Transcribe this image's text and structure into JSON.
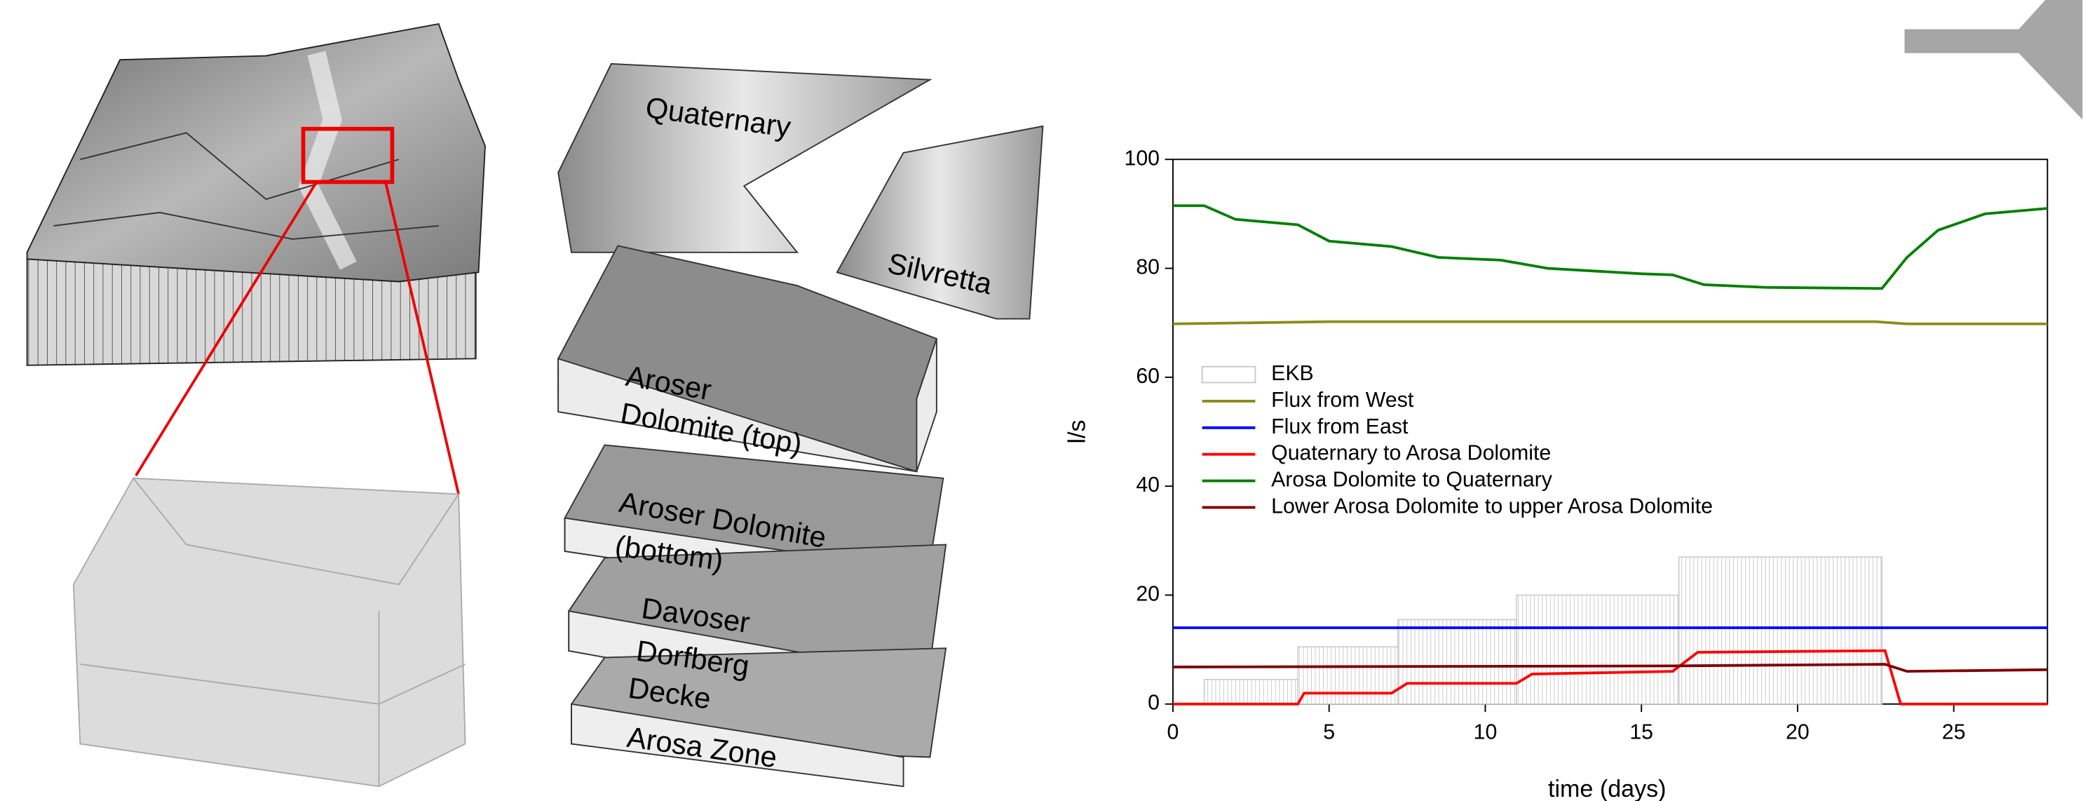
{
  "model_labels": [
    "Quaternary",
    "Silvretta",
    "Aroser",
    "Dolomite (top)",
    "Aroser Dolomite",
    "(bottom)",
    "Davoser",
    "Dorfberg",
    "Decke",
    "Arosa Zone"
  ],
  "chart_data": {
    "type": "line",
    "xlabel": "time (days)",
    "ylabel": "l/s",
    "xlim": [
      0,
      28
    ],
    "xticks": [
      0,
      5,
      10,
      15,
      20,
      25
    ],
    "ylim": [
      0,
      100
    ],
    "yticks": [
      0,
      20,
      40,
      60,
      80,
      100
    ],
    "bar_series": {
      "name": "EKB",
      "color": "#c8c8c8",
      "bins": [
        1,
        4,
        7.2,
        11,
        16.2,
        22.7
      ],
      "values": [
        4.5,
        10.5,
        15.5,
        20,
        27
      ]
    },
    "series": [
      {
        "name": "Flux from West",
        "color": "#8b8b1a",
        "x": [
          0,
          5,
          22.5,
          23.5,
          28
        ],
        "values": [
          69.8,
          70.2,
          70.2,
          69.8,
          69.8
        ]
      },
      {
        "name": "Flux from East",
        "color": "#0000ff",
        "x": [
          0,
          28
        ],
        "values": [
          14,
          14
        ]
      },
      {
        "name": "Quaternary to Arosa Dolomite",
        "color": "#ff0000",
        "x": [
          0,
          4,
          4.2,
          7,
          7.5,
          11,
          11.5,
          16,
          16.8,
          22.8,
          23.3,
          28
        ],
        "values": [
          0,
          0,
          2,
          2,
          3.8,
          3.8,
          5.5,
          6,
          9.5,
          9.8,
          0,
          0
        ]
      },
      {
        "name": "Arosa Dolomite to Quaternary",
        "color": "#008000",
        "x": [
          0,
          1,
          2,
          4,
          5,
          7,
          8.5,
          10.5,
          12,
          15,
          16,
          17,
          19,
          22.7,
          23.5,
          24.5,
          26,
          28
        ],
        "values": [
          91.5,
          91.5,
          89,
          88,
          85,
          84,
          82,
          81.5,
          80,
          79,
          78.8,
          77,
          76.5,
          76.3,
          82,
          87,
          90,
          91
        ]
      },
      {
        "name": "Lower Arosa Dolomite to upper Arosa Dolomite",
        "color": "#800000",
        "x": [
          0,
          16,
          22.8,
          23.5,
          28
        ],
        "values": [
          6.8,
          7,
          7.3,
          6,
          6.3
        ]
      }
    ]
  }
}
